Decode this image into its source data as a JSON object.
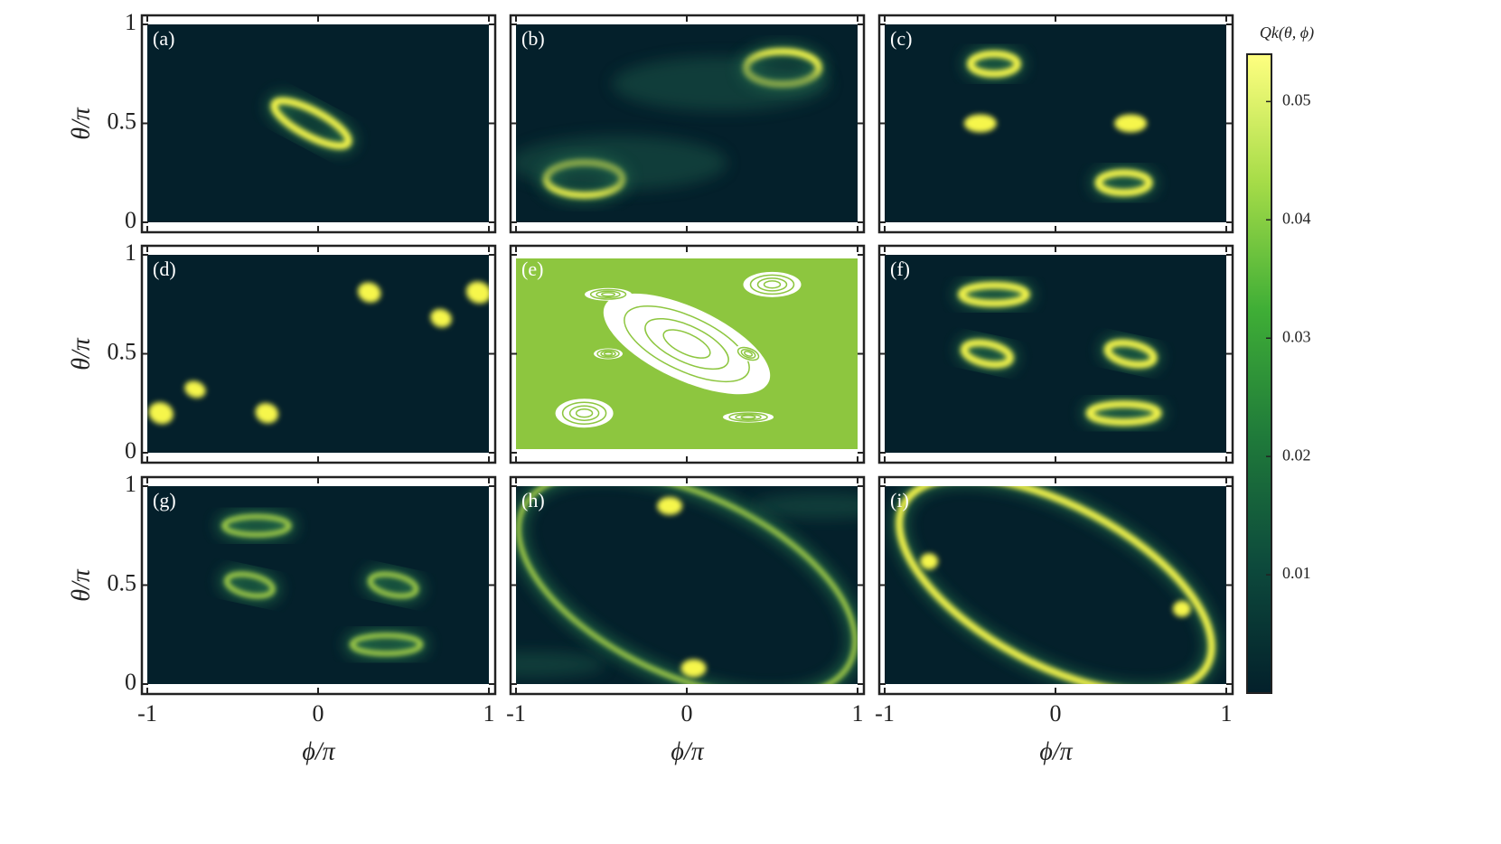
{
  "chart_data": [
    {
      "type": "heatmap",
      "label": "(a)",
      "xlim": [
        -1,
        1
      ],
      "ylim": [
        0,
        1
      ],
      "xticks": [
        -1,
        0,
        1
      ],
      "yticks": [
        0,
        0.5,
        1
      ],
      "ylabel": "θ/π"
    },
    {
      "type": "heatmap",
      "label": "(b)",
      "xlim": [
        -1,
        1
      ],
      "ylim": [
        0,
        1
      ],
      "xticks": [
        -1,
        0,
        1
      ],
      "yticks": [
        0,
        0.5,
        1
      ]
    },
    {
      "type": "heatmap",
      "label": "(c)",
      "xlim": [
        -1,
        1
      ],
      "ylim": [
        0,
        1
      ],
      "xticks": [
        -1,
        0,
        1
      ],
      "yticks": [
        0,
        0.5,
        1
      ]
    },
    {
      "type": "heatmap",
      "label": "(d)",
      "xlim": [
        -1,
        1
      ],
      "ylim": [
        0,
        1
      ],
      "xticks": [
        -1,
        0,
        1
      ],
      "yticks": [
        0,
        0.5,
        1
      ],
      "ylabel": "θ/π"
    },
    {
      "type": "scatter",
      "label": "(e)",
      "xlim": [
        -1,
        1
      ],
      "ylim": [
        0,
        1
      ],
      "xticks": [
        -1,
        0,
        1
      ],
      "yticks": [
        0,
        0.5,
        1
      ],
      "color": "#8dc63f"
    },
    {
      "type": "heatmap",
      "label": "(f)",
      "xlim": [
        -1,
        1
      ],
      "ylim": [
        0,
        1
      ],
      "xticks": [
        -1,
        0,
        1
      ],
      "yticks": [
        0,
        0.5,
        1
      ]
    },
    {
      "type": "heatmap",
      "label": "(g)",
      "xlim": [
        -1,
        1
      ],
      "ylim": [
        0,
        1
      ],
      "xticks": [
        -1,
        0,
        1
      ],
      "yticks": [
        0,
        0.5,
        1
      ],
      "xlabel": "ϕ/π",
      "ylabel": "θ/π"
    },
    {
      "type": "heatmap",
      "label": "(h)",
      "xlim": [
        -1,
        1
      ],
      "ylim": [
        0,
        1
      ],
      "xticks": [
        -1,
        0,
        1
      ],
      "yticks": [
        0,
        0.5,
        1
      ],
      "xlabel": "ϕ/π"
    },
    {
      "type": "heatmap",
      "label": "(i)",
      "xlim": [
        -1,
        1
      ],
      "ylim": [
        0,
        1
      ],
      "xticks": [
        -1,
        0,
        1
      ],
      "yticks": [
        0,
        0.5,
        1
      ],
      "xlabel": "ϕ/π"
    }
  ],
  "colorbar": {
    "title": "Qk(θ, ϕ)",
    "lim": [
      0,
      0.054
    ],
    "ticks": [
      0.01,
      0.02,
      0.03,
      0.04,
      0.05
    ],
    "colors": [
      "#03202b",
      "#0d4a3c",
      "#1f7a3a",
      "#3fae36",
      "#a6dc48",
      "#ffff80"
    ]
  }
}
